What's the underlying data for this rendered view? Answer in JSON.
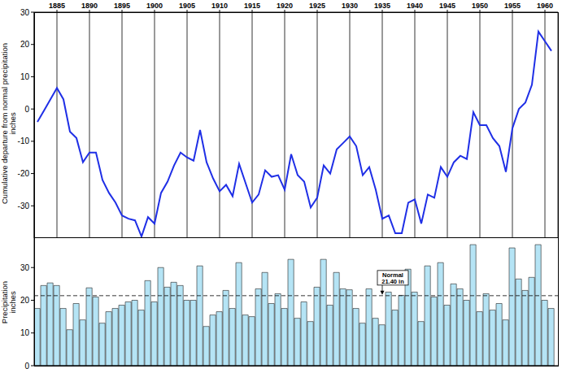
{
  "chart_data": [
    {
      "type": "line",
      "y_label": "Cumulative departure from normal precipitation\ninches",
      "x": [
        1882,
        1883,
        1884,
        1885,
        1886,
        1887,
        1888,
        1889,
        1890,
        1891,
        1892,
        1893,
        1894,
        1895,
        1896,
        1897,
        1898,
        1899,
        1900,
        1901,
        1902,
        1903,
        1904,
        1905,
        1906,
        1907,
        1908,
        1909,
        1910,
        1911,
        1912,
        1913,
        1914,
        1915,
        1916,
        1917,
        1918,
        1919,
        1920,
        1921,
        1922,
        1923,
        1924,
        1925,
        1926,
        1927,
        1928,
        1929,
        1930,
        1931,
        1932,
        1933,
        1934,
        1935,
        1936,
        1937,
        1938,
        1939,
        1940,
        1941,
        1942,
        1943,
        1944,
        1945,
        1946,
        1947,
        1948,
        1949,
        1950,
        1951,
        1952,
        1953,
        1954,
        1955,
        1956,
        1957,
        1958,
        1959,
        1960,
        1961
      ],
      "values": [
        -4,
        -0.5,
        3,
        6.5,
        3,
        -7,
        -9,
        -16.5,
        -13.5,
        -13.5,
        -22,
        -26,
        -29,
        -33,
        -34,
        -34.5,
        -39.5,
        -33.5,
        -35.5,
        -26,
        -22.5,
        -17.5,
        -13.5,
        -15,
        -16,
        -6.5,
        -16.5,
        -21.5,
        -25.5,
        -23.5,
        -27,
        -17,
        -23,
        -29,
        -26.5,
        -19,
        -21,
        -20.5,
        -25,
        -14,
        -20.5,
        -22.5,
        -30.5,
        -27.5,
        -17.5,
        -20,
        -12.5,
        -10.5,
        -8.5,
        -11.5,
        -20.5,
        -18,
        -25,
        -34,
        -33,
        -38.5,
        -38.5,
        -29,
        -28,
        -35.5,
        -26.5,
        -27.5,
        -18,
        -21,
        -16.5,
        -14.5,
        -15.5,
        -1,
        -5,
        -5,
        -9,
        -11.5,
        -19.5,
        -6,
        0,
        2,
        7.5,
        24,
        21,
        18
      ],
      "color": "#1f2fe6",
      "xlim": [
        1881.5,
        1962
      ],
      "xticks": [
        1885,
        1890,
        1895,
        1900,
        1905,
        1910,
        1915,
        1920,
        1925,
        1930,
        1935,
        1940,
        1945,
        1950,
        1955,
        1960
      ],
      "ylim": [
        -40,
        30
      ],
      "yticks": [
        -30,
        -20,
        -10,
        0,
        10,
        20,
        30
      ],
      "grid": true
    },
    {
      "type": "bar",
      "y_label": "Precipitation\ninches",
      "x": [
        1882,
        1883,
        1884,
        1885,
        1886,
        1887,
        1888,
        1889,
        1890,
        1891,
        1892,
        1893,
        1894,
        1895,
        1896,
        1897,
        1898,
        1899,
        1900,
        1901,
        1902,
        1903,
        1904,
        1905,
        1906,
        1907,
        1908,
        1909,
        1910,
        1911,
        1912,
        1913,
        1914,
        1915,
        1916,
        1917,
        1918,
        1919,
        1920,
        1921,
        1922,
        1923,
        1924,
        1925,
        1926,
        1927,
        1928,
        1929,
        1930,
        1931,
        1932,
        1933,
        1934,
        1935,
        1936,
        1937,
        1938,
        1939,
        1940,
        1941,
        1942,
        1943,
        1944,
        1945,
        1946,
        1947,
        1948,
        1949,
        1950,
        1951,
        1952,
        1953,
        1954,
        1955,
        1956,
        1957,
        1958,
        1959,
        1960,
        1961
      ],
      "values": [
        17.5,
        24.5,
        25.3,
        24.5,
        17.5,
        11,
        19,
        14,
        23.8,
        21,
        13,
        16.5,
        17.5,
        18.5,
        19.5,
        20,
        17,
        26,
        19.5,
        30,
        24,
        25.5,
        24.5,
        20,
        20,
        30.5,
        12,
        15.5,
        16.5,
        23,
        17.5,
        31.5,
        15.5,
        15,
        23.5,
        28.5,
        19,
        22,
        17.5,
        32.5,
        14.5,
        19.5,
        13.5,
        24,
        32.5,
        18.5,
        28.5,
        23.5,
        23.2,
        17.5,
        13,
        23.5,
        14.5,
        12.5,
        22.5,
        17,
        21.5,
        29.5,
        22.5,
        13.5,
        30.5,
        21,
        31.5,
        18.5,
        25,
        23.5,
        20,
        37,
        16.5,
        22,
        17,
        19,
        14,
        36,
        26.5,
        23,
        27,
        37,
        20,
        17.5
      ],
      "color": "#b5e4f5",
      "xlim": [
        1881.5,
        1962
      ],
      "ylim": [
        0,
        39
      ],
      "yticks": [
        0,
        10,
        20,
        30
      ],
      "tick_labels": "y",
      "normal": 21.4,
      "annotations": [
        {
          "text": "Normal\n21.40 in",
          "x": 1935,
          "y": 21.4
        }
      ]
    }
  ]
}
